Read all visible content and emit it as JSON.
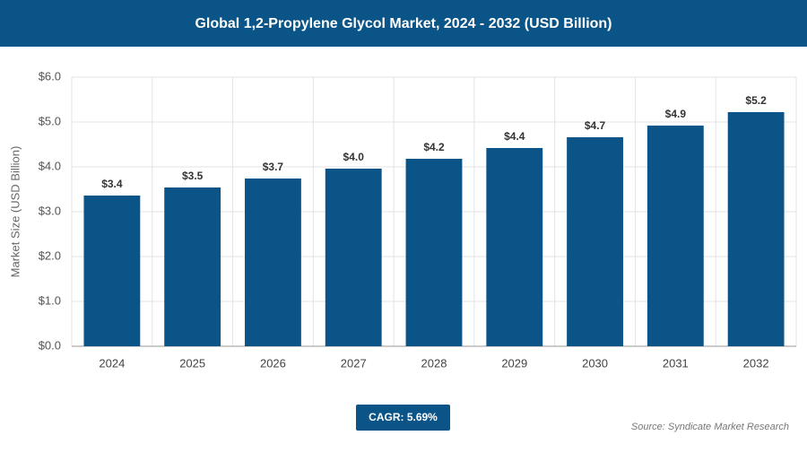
{
  "chart_data": {
    "type": "bar",
    "title": "Global 1,2-Propylene Glycol Market, 2024 - 2032 (USD Billion)",
    "y_axis_label": "Market Size (USD Billion)",
    "categories": [
      "2024",
      "2025",
      "2026",
      "2027",
      "2028",
      "2029",
      "2030",
      "2031",
      "2032"
    ],
    "values": [
      3.36,
      3.54,
      3.74,
      3.96,
      4.18,
      4.42,
      4.66,
      4.92,
      5.22
    ],
    "value_labels": [
      "$3.4",
      "$3.5",
      "$3.7",
      "$4.0",
      "$4.2",
      "$4.4",
      "$4.7",
      "$4.9",
      "$5.2"
    ],
    "color": "#0b5487",
    "ylim": [
      0,
      6
    ],
    "yticks": [
      {
        "value": 0,
        "label": "$0.0"
      },
      {
        "value": 1,
        "label": "$1.0"
      },
      {
        "value": 2,
        "label": "$2.0"
      },
      {
        "value": 3,
        "label": "$3.0"
      },
      {
        "value": 4,
        "label": "$4.0"
      },
      {
        "value": 5,
        "label": "$5.0"
      },
      {
        "value": 6,
        "label": "$6.0"
      }
    ],
    "grid": true,
    "cagr": "CAGR: 5.69%",
    "source": "Source: Syndicate Market Research"
  }
}
